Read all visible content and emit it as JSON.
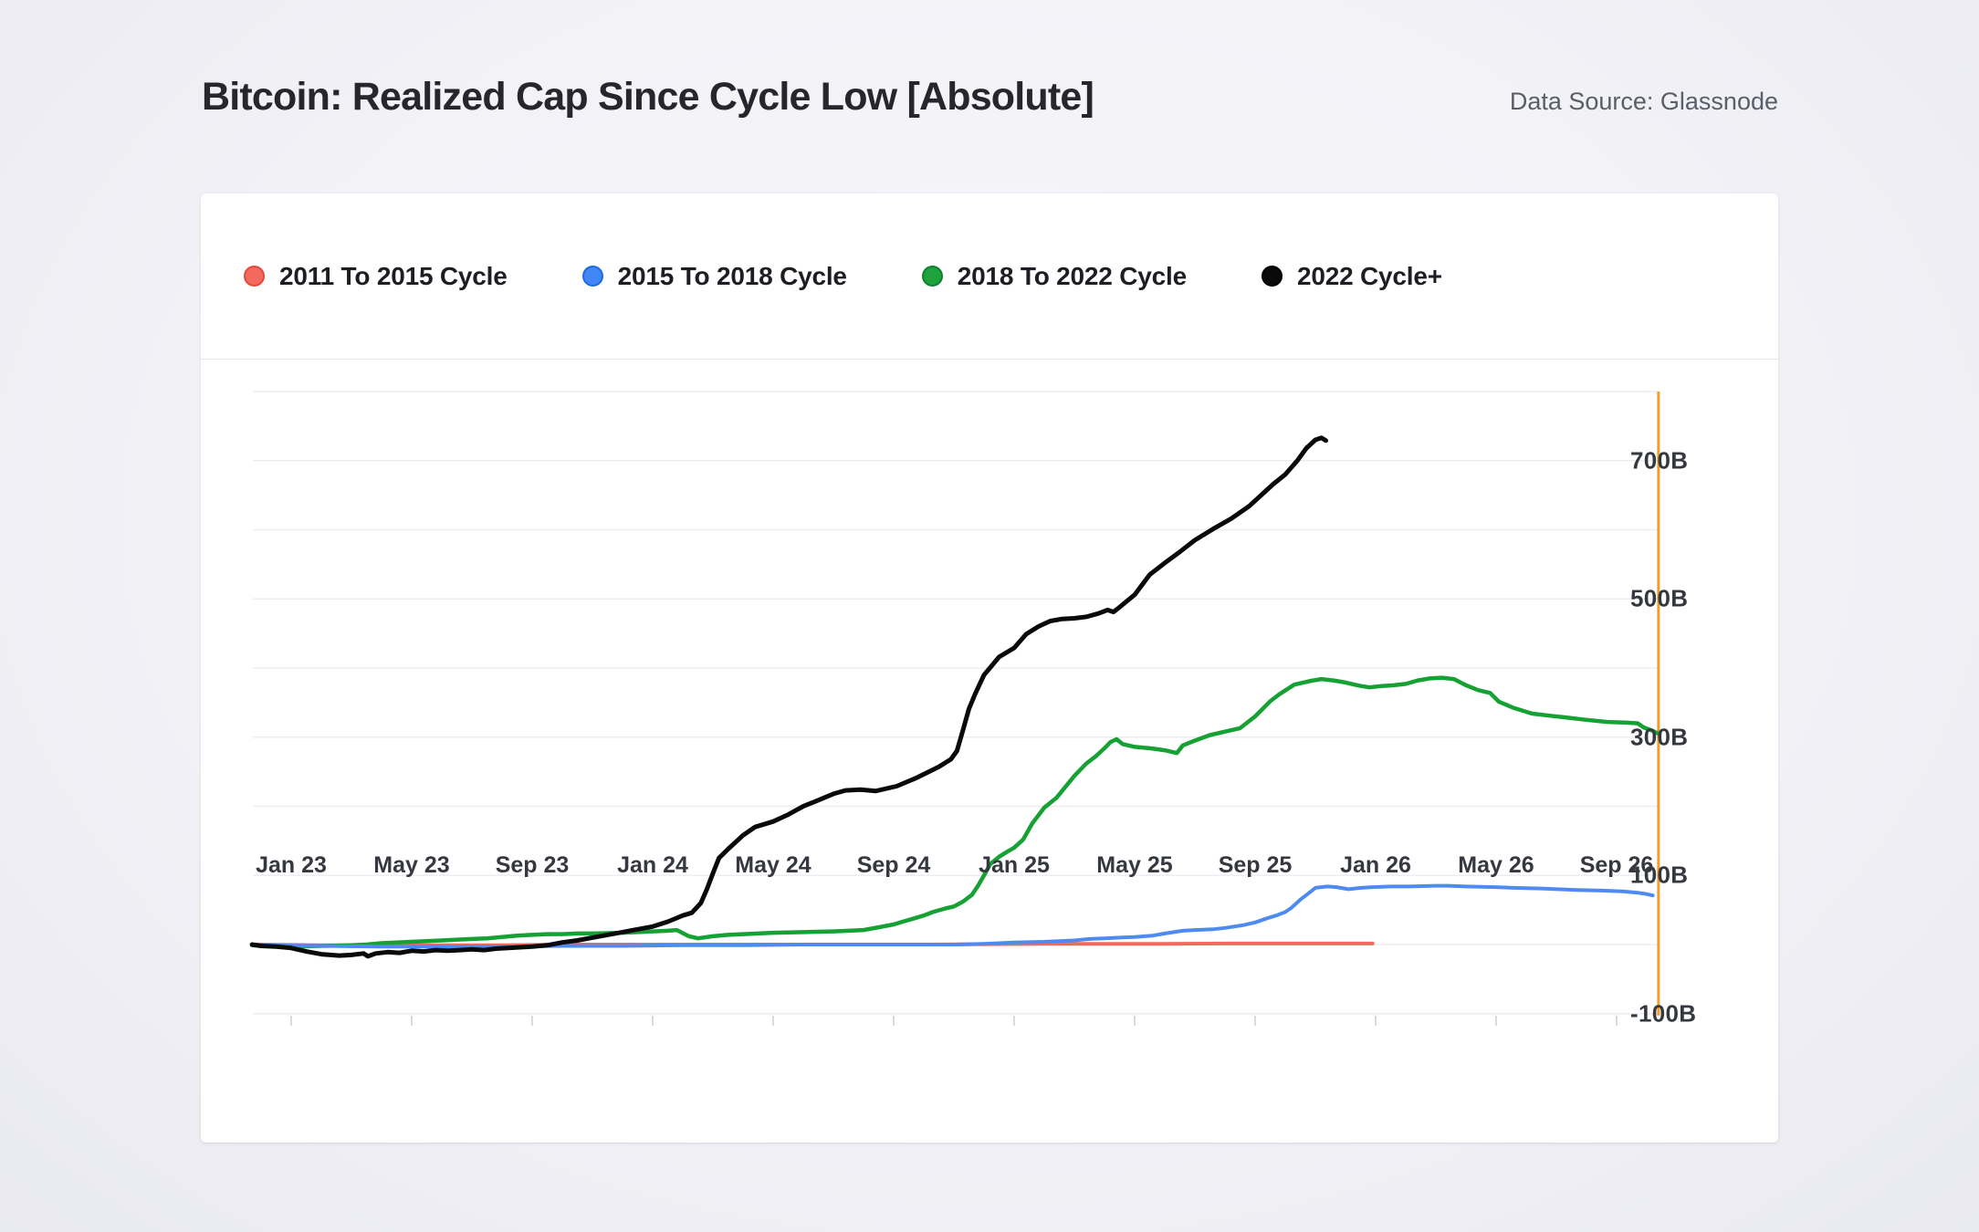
{
  "page": {
    "title": "Bitcoin: Realized Cap Since Cycle Low [Absolute]",
    "data_source": "Data Source: Glassnode"
  },
  "legend": {
    "items": [
      {
        "label": "2011 To 2015 Cycle",
        "color": "#f4695e",
        "border": "#e2493d"
      },
      {
        "label": "2015 To 2018 Cycle",
        "color": "#4285f4",
        "border": "#1c6ae4"
      },
      {
        "label": "2018 To 2022 Cycle",
        "color": "#1da23c",
        "border": "#0f8030"
      },
      {
        "label": "2022 Cycle+",
        "color": "#0a0a0c",
        "border": "#000000"
      }
    ]
  },
  "axes": {
    "x_ticks": [
      {
        "label": "Jan 23",
        "m": 1
      },
      {
        "label": "May 23",
        "m": 5
      },
      {
        "label": "Sep 23",
        "m": 9
      },
      {
        "label": "Jan 24",
        "m": 13
      },
      {
        "label": "May 24",
        "m": 17
      },
      {
        "label": "Sep 24",
        "m": 21
      },
      {
        "label": "Jan 25",
        "m": 25
      },
      {
        "label": "May 25",
        "m": 29
      },
      {
        "label": "Sep 25",
        "m": 33
      },
      {
        "label": "Jan 26",
        "m": 37
      },
      {
        "label": "May 26",
        "m": 41
      },
      {
        "label": "Sep 26",
        "m": 45
      }
    ],
    "y_ticks": [
      {
        "label": "700B",
        "value": 700
      },
      {
        "label": "500B",
        "value": 500
      },
      {
        "label": "300B",
        "value": 300
      },
      {
        "label": "100B",
        "value": 100
      },
      {
        "label": "-100B",
        "value": -100
      }
    ]
  },
  "chart_data": {
    "type": "line",
    "title": "Bitcoin: Realized Cap Since Cycle Low [Absolute]",
    "x_unit": "months since cycle low (axis labelled with 2022-cycle dates)",
    "y_unit": "USD billions gained since cycle low",
    "ylim": [
      -100,
      800
    ],
    "xlim_months": [
      -0.3,
      46.7
    ],
    "grid_values": [
      800,
      700,
      600,
      500,
      400,
      300,
      200,
      100,
      0,
      -100
    ],
    "legend_position": "top-left",
    "end_marker_line": {
      "x_month": 46.39,
      "color": "#f59b28"
    },
    "series": [
      {
        "name": "2011 To 2015 Cycle",
        "color": "#f4695e",
        "width": 4,
        "points": [
          [
            -0.3,
            0
          ],
          [
            0,
            0
          ],
          [
            2,
            -1
          ],
          [
            4,
            -1
          ],
          [
            6,
            -1
          ],
          [
            8,
            -1
          ],
          [
            10,
            0
          ],
          [
            12,
            0
          ],
          [
            14,
            0
          ],
          [
            16,
            0
          ],
          [
            18,
            0
          ],
          [
            20,
            0
          ],
          [
            22,
            0
          ],
          [
            24,
            0.5
          ],
          [
            26,
            1
          ],
          [
            28,
            1
          ],
          [
            30,
            1
          ],
          [
            32,
            1.5
          ],
          [
            34,
            1.5
          ],
          [
            36,
            1.5
          ],
          [
            36.9,
            1.5
          ]
        ]
      },
      {
        "name": "2018 To 2022 Cycle",
        "color": "#16a135",
        "width": 4.5,
        "points": [
          [
            -0.3,
            -1
          ],
          [
            0,
            -2
          ],
          [
            1,
            -3
          ],
          [
            2,
            -2
          ],
          [
            3,
            -1
          ],
          [
            3.5,
            0
          ],
          [
            4,
            2
          ],
          [
            5,
            4
          ],
          [
            6,
            6
          ],
          [
            7,
            8
          ],
          [
            7.5,
            9
          ],
          [
            8,
            11
          ],
          [
            8.5,
            13
          ],
          [
            9,
            14
          ],
          [
            9.5,
            15
          ],
          [
            10,
            15
          ],
          [
            10.5,
            16
          ],
          [
            11,
            16
          ],
          [
            12,
            17
          ],
          [
            12.5,
            18
          ],
          [
            13,
            19
          ],
          [
            13.5,
            20
          ],
          [
            13.8,
            21
          ],
          [
            14.2,
            12
          ],
          [
            14.5,
            9
          ],
          [
            15,
            12
          ],
          [
            15.5,
            14
          ],
          [
            16,
            15
          ],
          [
            16.5,
            16
          ],
          [
            17,
            17
          ],
          [
            18,
            18
          ],
          [
            19,
            19
          ],
          [
            19.5,
            20
          ],
          [
            20,
            21
          ],
          [
            20.5,
            25
          ],
          [
            21,
            29
          ],
          [
            21.3,
            33
          ],
          [
            21.7,
            38
          ],
          [
            22,
            42
          ],
          [
            22.3,
            47
          ],
          [
            22.7,
            52
          ],
          [
            23,
            55
          ],
          [
            23.3,
            62
          ],
          [
            23.6,
            72
          ],
          [
            23.8,
            85
          ],
          [
            24,
            100
          ],
          [
            24.2,
            116
          ],
          [
            24.5,
            127
          ],
          [
            24.8,
            135
          ],
          [
            25,
            140
          ],
          [
            25.3,
            152
          ],
          [
            25.6,
            175
          ],
          [
            26,
            198
          ],
          [
            26.4,
            212
          ],
          [
            26.7,
            228
          ],
          [
            27,
            244
          ],
          [
            27.4,
            262
          ],
          [
            27.7,
            272
          ],
          [
            28,
            284
          ],
          [
            28.2,
            293
          ],
          [
            28.4,
            297
          ],
          [
            28.6,
            290
          ],
          [
            29,
            286
          ],
          [
            29.5,
            284
          ],
          [
            30,
            281
          ],
          [
            30.4,
            277
          ],
          [
            30.6,
            288
          ],
          [
            31,
            295
          ],
          [
            31.5,
            303
          ],
          [
            32,
            308
          ],
          [
            32.5,
            313
          ],
          [
            33,
            330
          ],
          [
            33.5,
            352
          ],
          [
            33.8,
            362
          ],
          [
            34.3,
            376
          ],
          [
            34.8,
            381
          ],
          [
            35.2,
            384
          ],
          [
            35.6,
            382
          ],
          [
            36,
            379
          ],
          [
            36.5,
            374
          ],
          [
            36.8,
            372
          ],
          [
            37.2,
            374
          ],
          [
            37.6,
            375
          ],
          [
            38,
            377
          ],
          [
            38.4,
            382
          ],
          [
            38.8,
            385
          ],
          [
            39.2,
            386
          ],
          [
            39.6,
            384
          ],
          [
            40,
            375
          ],
          [
            40.4,
            368
          ],
          [
            40.8,
            364
          ],
          [
            41.1,
            351
          ],
          [
            41.6,
            342
          ],
          [
            42.2,
            334
          ],
          [
            42.8,
            331
          ],
          [
            43.4,
            328
          ],
          [
            44,
            325
          ],
          [
            44.7,
            322
          ],
          [
            45.3,
            321
          ],
          [
            45.7,
            320
          ],
          [
            45.9,
            314
          ],
          [
            46.2,
            309
          ],
          [
            46.39,
            305
          ]
        ]
      },
      {
        "name": "2015 To 2018 Cycle",
        "color": "#4f8af2",
        "width": 4,
        "points": [
          [
            -0.3,
            0
          ],
          [
            0,
            -1
          ],
          [
            2,
            -2
          ],
          [
            4,
            -3
          ],
          [
            6,
            -3
          ],
          [
            8,
            -3
          ],
          [
            10,
            -2
          ],
          [
            12,
            -2
          ],
          [
            14,
            -1
          ],
          [
            16,
            -1
          ],
          [
            18,
            0
          ],
          [
            20,
            0
          ],
          [
            22,
            0
          ],
          [
            23,
            0
          ],
          [
            24,
            1
          ],
          [
            24.5,
            2
          ],
          [
            25,
            3
          ],
          [
            26,
            4
          ],
          [
            27,
            6
          ],
          [
            27.5,
            8
          ],
          [
            28,
            9
          ],
          [
            28.5,
            10
          ],
          [
            29,
            11
          ],
          [
            29.6,
            13
          ],
          [
            30,
            16
          ],
          [
            30.6,
            20
          ],
          [
            31,
            21
          ],
          [
            31.6,
            22
          ],
          [
            32,
            24
          ],
          [
            32.6,
            28
          ],
          [
            33,
            32
          ],
          [
            33.4,
            38
          ],
          [
            33.7,
            42
          ],
          [
            34,
            47
          ],
          [
            34.2,
            53
          ],
          [
            34.5,
            65
          ],
          [
            34.8,
            75
          ],
          [
            35,
            82
          ],
          [
            35.4,
            84
          ],
          [
            35.7,
            83
          ],
          [
            36.1,
            80
          ],
          [
            36.5,
            82
          ],
          [
            36.9,
            83
          ],
          [
            37.5,
            84
          ],
          [
            38.1,
            84
          ],
          [
            39,
            85
          ],
          [
            39.4,
            85
          ],
          [
            40,
            84
          ],
          [
            41,
            83
          ],
          [
            41.6,
            82
          ],
          [
            42.5,
            81
          ],
          [
            43.7,
            79
          ],
          [
            44.5,
            78
          ],
          [
            45.2,
            77
          ],
          [
            45.7,
            75
          ],
          [
            46,
            73
          ],
          [
            46.2,
            71
          ]
        ]
      },
      {
        "name": "2022 Cycle+",
        "color": "#0a0a0c",
        "width": 5,
        "points": [
          [
            -0.3,
            0
          ],
          [
            0,
            -2
          ],
          [
            0.5,
            -3
          ],
          [
            1,
            -5
          ],
          [
            1.5,
            -10
          ],
          [
            2,
            -14
          ],
          [
            2.6,
            -16
          ],
          [
            3,
            -15
          ],
          [
            3.4,
            -13
          ],
          [
            3.55,
            -17
          ],
          [
            3.8,
            -13
          ],
          [
            4.2,
            -11
          ],
          [
            4.6,
            -12
          ],
          [
            5,
            -9
          ],
          [
            5.4,
            -10
          ],
          [
            5.8,
            -8
          ],
          [
            6.2,
            -9
          ],
          [
            6.6,
            -8
          ],
          [
            7,
            -7
          ],
          [
            7.4,
            -8
          ],
          [
            7.8,
            -6
          ],
          [
            8.2,
            -5
          ],
          [
            8.6,
            -4
          ],
          [
            9,
            -3
          ],
          [
            9.5,
            -1
          ],
          [
            10,
            3
          ],
          [
            10.5,
            6
          ],
          [
            11,
            10
          ],
          [
            11.5,
            14
          ],
          [
            12,
            18
          ],
          [
            12.5,
            22
          ],
          [
            13,
            26
          ],
          [
            13.5,
            33
          ],
          [
            14,
            42
          ],
          [
            14.3,
            46
          ],
          [
            14.6,
            60
          ],
          [
            14.8,
            80
          ],
          [
            15,
            103
          ],
          [
            15.2,
            125
          ],
          [
            15.5,
            138
          ],
          [
            16,
            158
          ],
          [
            16.4,
            170
          ],
          [
            17,
            178
          ],
          [
            17.5,
            188
          ],
          [
            18,
            200
          ],
          [
            18.4,
            207
          ],
          [
            19,
            218
          ],
          [
            19.4,
            223
          ],
          [
            19.9,
            224
          ],
          [
            20.4,
            222
          ],
          [
            21.1,
            229
          ],
          [
            21.7,
            240
          ],
          [
            22.5,
            257
          ],
          [
            22.9,
            268
          ],
          [
            23.1,
            280
          ],
          [
            23.3,
            310
          ],
          [
            23.5,
            341
          ],
          [
            23.7,
            362
          ],
          [
            24,
            390
          ],
          [
            24.5,
            416
          ],
          [
            25,
            429
          ],
          [
            25.4,
            449
          ],
          [
            25.8,
            460
          ],
          [
            26.2,
            468
          ],
          [
            26.6,
            471
          ],
          [
            27,
            472
          ],
          [
            27.4,
            474
          ],
          [
            27.8,
            479
          ],
          [
            28.1,
            484
          ],
          [
            28.3,
            481
          ],
          [
            28.5,
            488
          ],
          [
            29,
            506
          ],
          [
            29.5,
            535
          ],
          [
            30,
            552
          ],
          [
            30.5,
            568
          ],
          [
            31,
            585
          ],
          [
            31.6,
            601
          ],
          [
            32.2,
            616
          ],
          [
            32.8,
            634
          ],
          [
            33.2,
            650
          ],
          [
            33.6,
            666
          ],
          [
            34,
            680
          ],
          [
            34.4,
            700
          ],
          [
            34.7,
            718
          ],
          [
            35,
            730
          ],
          [
            35.2,
            733
          ],
          [
            35.35,
            729
          ]
        ]
      }
    ]
  }
}
